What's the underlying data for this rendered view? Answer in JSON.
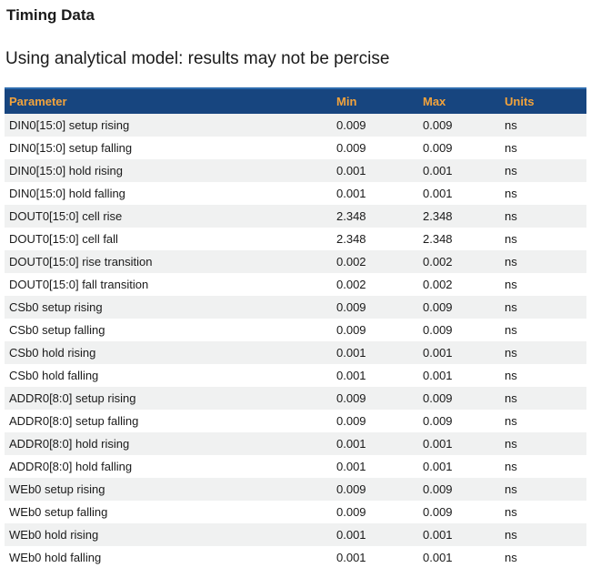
{
  "page": {
    "title": "Timing Data",
    "subtitle": "Using analytical model: results may not be percise"
  },
  "colors": {
    "header_bg": "#17457f",
    "header_top": "#2e6cae",
    "header_text": "#f2a33c",
    "row_alt_bg": "#f0f1f1",
    "text": "#1a1a1a"
  },
  "table": {
    "columns": [
      "Parameter",
      "Min",
      "Max",
      "Units"
    ],
    "rows": [
      {
        "parameter": "DIN0[15:0] setup rising",
        "min": "0.009",
        "max": "0.009",
        "units": "ns"
      },
      {
        "parameter": "DIN0[15:0] setup falling",
        "min": "0.009",
        "max": "0.009",
        "units": "ns"
      },
      {
        "parameter": "DIN0[15:0] hold rising",
        "min": "0.001",
        "max": "0.001",
        "units": "ns"
      },
      {
        "parameter": "DIN0[15:0] hold falling",
        "min": "0.001",
        "max": "0.001",
        "units": "ns"
      },
      {
        "parameter": "DOUT0[15:0] cell rise",
        "min": "2.348",
        "max": "2.348",
        "units": "ns"
      },
      {
        "parameter": "DOUT0[15:0] cell fall",
        "min": "2.348",
        "max": "2.348",
        "units": "ns"
      },
      {
        "parameter": "DOUT0[15:0] rise transition",
        "min": "0.002",
        "max": "0.002",
        "units": "ns"
      },
      {
        "parameter": "DOUT0[15:0] fall transition",
        "min": "0.002",
        "max": "0.002",
        "units": "ns"
      },
      {
        "parameter": "CSb0 setup rising",
        "min": "0.009",
        "max": "0.009",
        "units": "ns"
      },
      {
        "parameter": "CSb0 setup falling",
        "min": "0.009",
        "max": "0.009",
        "units": "ns"
      },
      {
        "parameter": "CSb0 hold rising",
        "min": "0.001",
        "max": "0.001",
        "units": "ns"
      },
      {
        "parameter": "CSb0 hold falling",
        "min": "0.001",
        "max": "0.001",
        "units": "ns"
      },
      {
        "parameter": "ADDR0[8:0] setup rising",
        "min": "0.009",
        "max": "0.009",
        "units": "ns"
      },
      {
        "parameter": "ADDR0[8:0] setup falling",
        "min": "0.009",
        "max": "0.009",
        "units": "ns"
      },
      {
        "parameter": "ADDR0[8:0] hold rising",
        "min": "0.001",
        "max": "0.001",
        "units": "ns"
      },
      {
        "parameter": "ADDR0[8:0] hold falling",
        "min": "0.001",
        "max": "0.001",
        "units": "ns"
      },
      {
        "parameter": "WEb0 setup rising",
        "min": "0.009",
        "max": "0.009",
        "units": "ns"
      },
      {
        "parameter": "WEb0 setup falling",
        "min": "0.009",
        "max": "0.009",
        "units": "ns"
      },
      {
        "parameter": "WEb0 hold rising",
        "min": "0.001",
        "max": "0.001",
        "units": "ns"
      },
      {
        "parameter": "WEb0 hold falling",
        "min": "0.001",
        "max": "0.001",
        "units": "ns"
      }
    ]
  }
}
